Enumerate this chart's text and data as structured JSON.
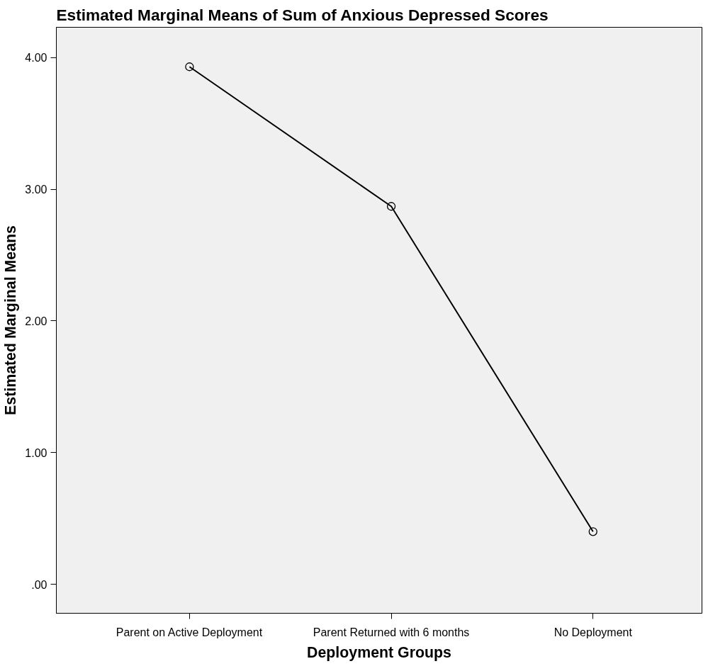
{
  "chart_data": {
    "type": "line",
    "title": "Estimated Marginal Means of Sum of Anxious Depressed Scores",
    "xlabel": "Deployment Groups",
    "ylabel": "Estimated Marginal Means",
    "categories": [
      "Parent on Active Deployment",
      "Parent Returned with 6 months",
      "No Deployment"
    ],
    "series": [
      {
        "color": "#000000",
        "values": [
          3.93,
          2.87,
          0.4
        ]
      }
    ],
    "ylim": [
      -0.22,
      4.23
    ],
    "yticks": [
      {
        "value": 0,
        "label": ".00"
      },
      {
        "value": 1,
        "label": "1.00"
      },
      {
        "value": 2,
        "label": "2.00"
      },
      {
        "value": 3,
        "label": "3.00"
      },
      {
        "value": 4,
        "label": "4.00"
      }
    ],
    "grid": false,
    "marker": "circle",
    "line_style": "solid"
  }
}
